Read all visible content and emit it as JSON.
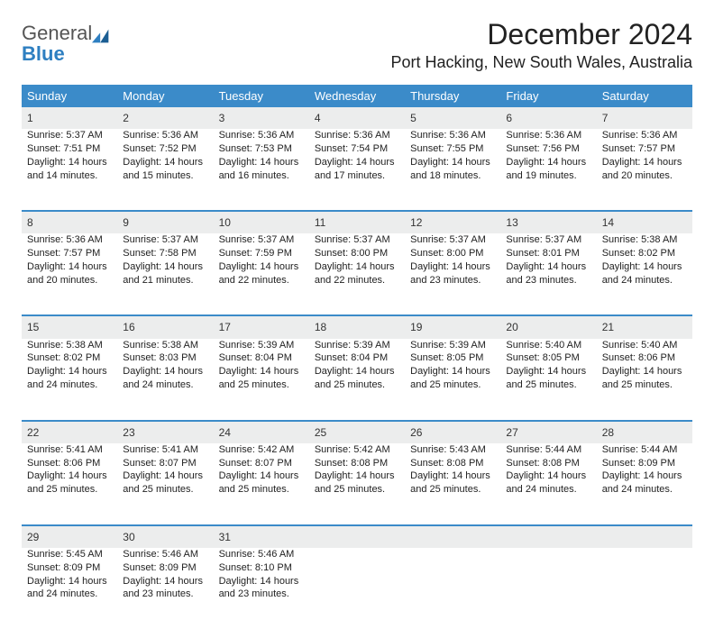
{
  "brand": {
    "word1": "General",
    "word2": "Blue"
  },
  "title": "December 2024",
  "location": "Port Hacking, New South Wales, Australia",
  "colors": {
    "header_bg": "#3b8bc9",
    "daynum_bg": "#eceded",
    "rule": "#3b8bc9"
  },
  "day_headers": [
    "Sunday",
    "Monday",
    "Tuesday",
    "Wednesday",
    "Thursday",
    "Friday",
    "Saturday"
  ],
  "weeks": [
    [
      {
        "n": "1",
        "sr": "Sunrise: 5:37 AM",
        "ss": "Sunset: 7:51 PM",
        "d1": "Daylight: 14 hours",
        "d2": "and 14 minutes."
      },
      {
        "n": "2",
        "sr": "Sunrise: 5:36 AM",
        "ss": "Sunset: 7:52 PM",
        "d1": "Daylight: 14 hours",
        "d2": "and 15 minutes."
      },
      {
        "n": "3",
        "sr": "Sunrise: 5:36 AM",
        "ss": "Sunset: 7:53 PM",
        "d1": "Daylight: 14 hours",
        "d2": "and 16 minutes."
      },
      {
        "n": "4",
        "sr": "Sunrise: 5:36 AM",
        "ss": "Sunset: 7:54 PM",
        "d1": "Daylight: 14 hours",
        "d2": "and 17 minutes."
      },
      {
        "n": "5",
        "sr": "Sunrise: 5:36 AM",
        "ss": "Sunset: 7:55 PM",
        "d1": "Daylight: 14 hours",
        "d2": "and 18 minutes."
      },
      {
        "n": "6",
        "sr": "Sunrise: 5:36 AM",
        "ss": "Sunset: 7:56 PM",
        "d1": "Daylight: 14 hours",
        "d2": "and 19 minutes."
      },
      {
        "n": "7",
        "sr": "Sunrise: 5:36 AM",
        "ss": "Sunset: 7:57 PM",
        "d1": "Daylight: 14 hours",
        "d2": "and 20 minutes."
      }
    ],
    [
      {
        "n": "8",
        "sr": "Sunrise: 5:36 AM",
        "ss": "Sunset: 7:57 PM",
        "d1": "Daylight: 14 hours",
        "d2": "and 20 minutes."
      },
      {
        "n": "9",
        "sr": "Sunrise: 5:37 AM",
        "ss": "Sunset: 7:58 PM",
        "d1": "Daylight: 14 hours",
        "d2": "and 21 minutes."
      },
      {
        "n": "10",
        "sr": "Sunrise: 5:37 AM",
        "ss": "Sunset: 7:59 PM",
        "d1": "Daylight: 14 hours",
        "d2": "and 22 minutes."
      },
      {
        "n": "11",
        "sr": "Sunrise: 5:37 AM",
        "ss": "Sunset: 8:00 PM",
        "d1": "Daylight: 14 hours",
        "d2": "and 22 minutes."
      },
      {
        "n": "12",
        "sr": "Sunrise: 5:37 AM",
        "ss": "Sunset: 8:00 PM",
        "d1": "Daylight: 14 hours",
        "d2": "and 23 minutes."
      },
      {
        "n": "13",
        "sr": "Sunrise: 5:37 AM",
        "ss": "Sunset: 8:01 PM",
        "d1": "Daylight: 14 hours",
        "d2": "and 23 minutes."
      },
      {
        "n": "14",
        "sr": "Sunrise: 5:38 AM",
        "ss": "Sunset: 8:02 PM",
        "d1": "Daylight: 14 hours",
        "d2": "and 24 minutes."
      }
    ],
    [
      {
        "n": "15",
        "sr": "Sunrise: 5:38 AM",
        "ss": "Sunset: 8:02 PM",
        "d1": "Daylight: 14 hours",
        "d2": "and 24 minutes."
      },
      {
        "n": "16",
        "sr": "Sunrise: 5:38 AM",
        "ss": "Sunset: 8:03 PM",
        "d1": "Daylight: 14 hours",
        "d2": "and 24 minutes."
      },
      {
        "n": "17",
        "sr": "Sunrise: 5:39 AM",
        "ss": "Sunset: 8:04 PM",
        "d1": "Daylight: 14 hours",
        "d2": "and 25 minutes."
      },
      {
        "n": "18",
        "sr": "Sunrise: 5:39 AM",
        "ss": "Sunset: 8:04 PM",
        "d1": "Daylight: 14 hours",
        "d2": "and 25 minutes."
      },
      {
        "n": "19",
        "sr": "Sunrise: 5:39 AM",
        "ss": "Sunset: 8:05 PM",
        "d1": "Daylight: 14 hours",
        "d2": "and 25 minutes."
      },
      {
        "n": "20",
        "sr": "Sunrise: 5:40 AM",
        "ss": "Sunset: 8:05 PM",
        "d1": "Daylight: 14 hours",
        "d2": "and 25 minutes."
      },
      {
        "n": "21",
        "sr": "Sunrise: 5:40 AM",
        "ss": "Sunset: 8:06 PM",
        "d1": "Daylight: 14 hours",
        "d2": "and 25 minutes."
      }
    ],
    [
      {
        "n": "22",
        "sr": "Sunrise: 5:41 AM",
        "ss": "Sunset: 8:06 PM",
        "d1": "Daylight: 14 hours",
        "d2": "and 25 minutes."
      },
      {
        "n": "23",
        "sr": "Sunrise: 5:41 AM",
        "ss": "Sunset: 8:07 PM",
        "d1": "Daylight: 14 hours",
        "d2": "and 25 minutes."
      },
      {
        "n": "24",
        "sr": "Sunrise: 5:42 AM",
        "ss": "Sunset: 8:07 PM",
        "d1": "Daylight: 14 hours",
        "d2": "and 25 minutes."
      },
      {
        "n": "25",
        "sr": "Sunrise: 5:42 AM",
        "ss": "Sunset: 8:08 PM",
        "d1": "Daylight: 14 hours",
        "d2": "and 25 minutes."
      },
      {
        "n": "26",
        "sr": "Sunrise: 5:43 AM",
        "ss": "Sunset: 8:08 PM",
        "d1": "Daylight: 14 hours",
        "d2": "and 25 minutes."
      },
      {
        "n": "27",
        "sr": "Sunrise: 5:44 AM",
        "ss": "Sunset: 8:08 PM",
        "d1": "Daylight: 14 hours",
        "d2": "and 24 minutes."
      },
      {
        "n": "28",
        "sr": "Sunrise: 5:44 AM",
        "ss": "Sunset: 8:09 PM",
        "d1": "Daylight: 14 hours",
        "d2": "and 24 minutes."
      }
    ],
    [
      {
        "n": "29",
        "sr": "Sunrise: 5:45 AM",
        "ss": "Sunset: 8:09 PM",
        "d1": "Daylight: 14 hours",
        "d2": "and 24 minutes."
      },
      {
        "n": "30",
        "sr": "Sunrise: 5:46 AM",
        "ss": "Sunset: 8:09 PM",
        "d1": "Daylight: 14 hours",
        "d2": "and 23 minutes."
      },
      {
        "n": "31",
        "sr": "Sunrise: 5:46 AM",
        "ss": "Sunset: 8:10 PM",
        "d1": "Daylight: 14 hours",
        "d2": "and 23 minutes."
      },
      null,
      null,
      null,
      null
    ]
  ]
}
